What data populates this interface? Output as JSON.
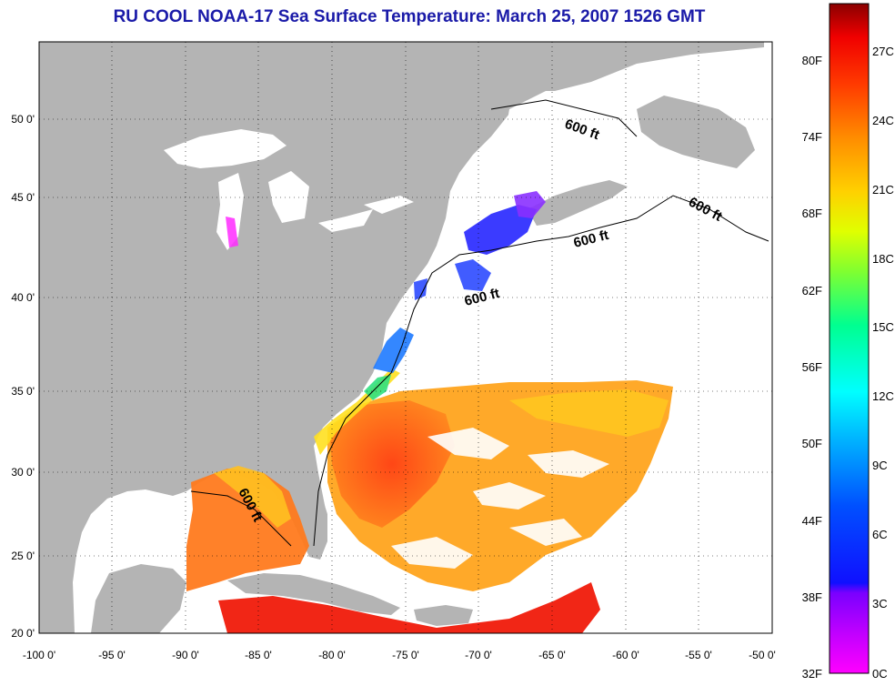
{
  "title": "RU COOL  NOAA-17  Sea Surface Temperature:  March 25, 2007 1526 GMT",
  "map": {
    "land_color": "#b4b4b4",
    "water_color": "#ffffff",
    "x_ticks": [
      "-100 0'",
      "-95 0'",
      "-90 0'",
      "-85 0'",
      "-80 0'",
      "-75 0'",
      "-70 0'",
      "-65 0'",
      "-60 0'",
      "-55 0'",
      "-50 0'"
    ],
    "y_ticks": [
      "50 0'",
      "45 0'",
      "40 0'",
      "35 0'",
      "30 0'",
      "25 0'",
      "20 0'"
    ],
    "contour_labels": [
      "600 ft",
      "600 ft",
      "600 ft",
      "600 ft",
      "600 ft"
    ]
  },
  "colorbar": {
    "fahrenheit_labels": [
      "80F",
      "74F",
      "68F",
      "62F",
      "56F",
      "50F",
      "44F",
      "38F",
      "32F"
    ],
    "celsius_labels": [
      "27C",
      "24C",
      "21C",
      "18C",
      "15C",
      "12C",
      "9C",
      "6C",
      "3C",
      "0C"
    ],
    "colors": [
      "#ff00ff",
      "#8000ff",
      "#0000ff",
      "#0080ff",
      "#00ffff",
      "#00ff80",
      "#80ff00",
      "#ffff00",
      "#ffa000",
      "#ff5000",
      "#ff0000",
      "#800000"
    ]
  }
}
